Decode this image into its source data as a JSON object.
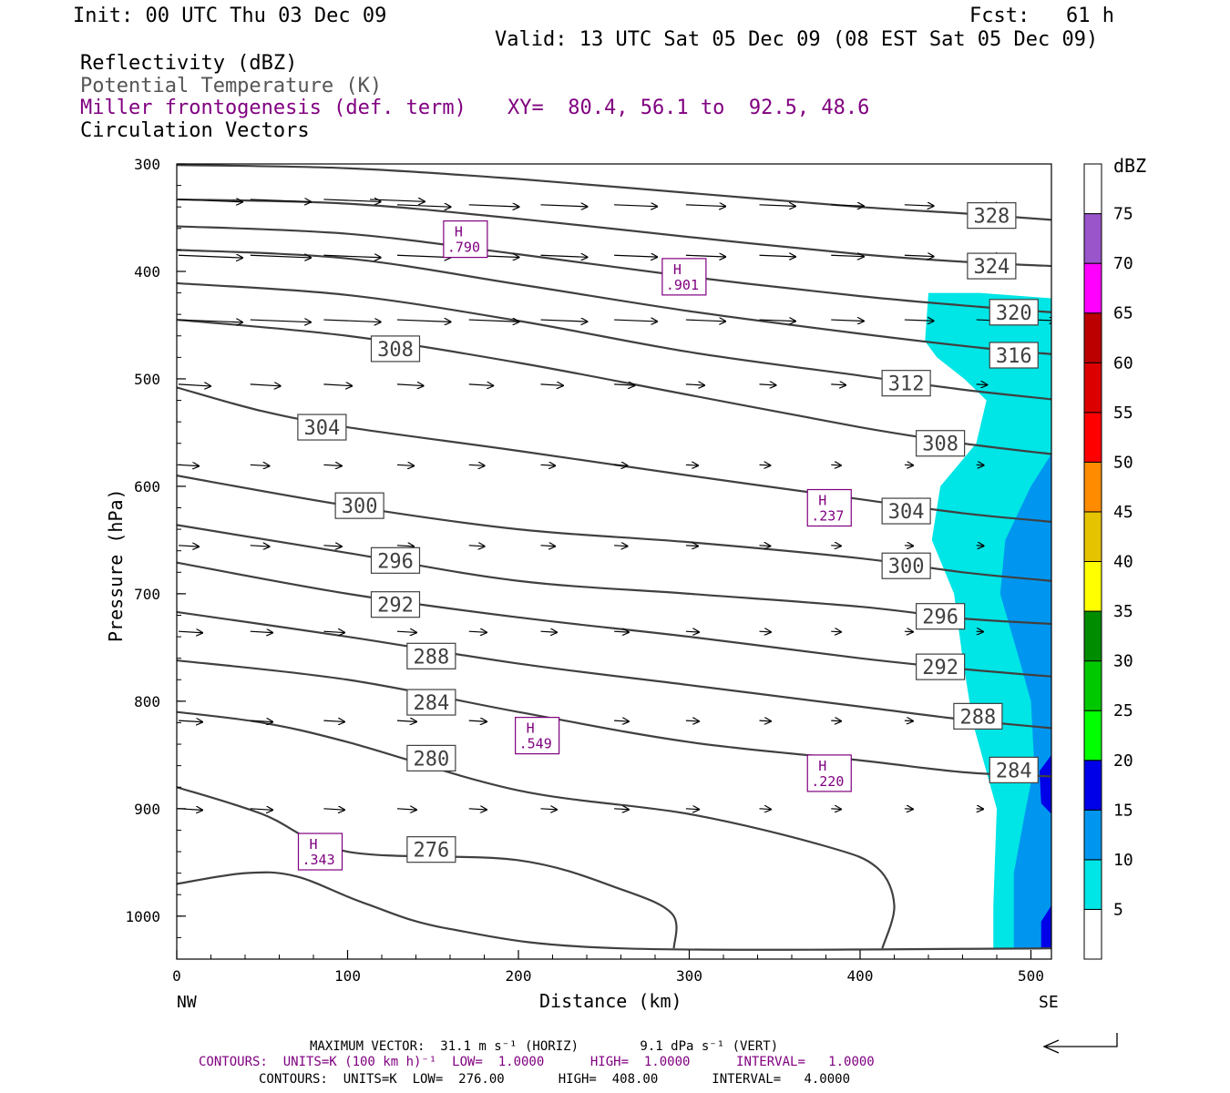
{
  "header": {
    "init": "Init: 00 UTC Thu 03 Dec 09",
    "fcst": "Fcst:   61 h",
    "valid": "Valid: 13 UTC Sat 05 Dec 09 (08 EST Sat 05 Dec 09)",
    "field1": "Reflectivity (dBZ)",
    "field2": "Potential Temperature (K)",
    "field3": "Miller frontogenesis (def. term)",
    "xy": "XY=  80.4, 56.1 to  92.5, 48.6",
    "field4": "Circulation Vectors"
  },
  "footer": {
    "max_vector": "MAXIMUM VECTOR:  31.1 m s⁻¹ (HORIZ)        9.1 dPa s⁻¹ (VERT)",
    "contours1": "CONTOURS:  UNITS=K (100 km h)⁻¹  LOW=  1.0000      HIGH=  1.0000      INTERVAL=   1.0000",
    "contours2": "CONTOURS:  UNITS=K  LOW=  276.00       HIGH=  408.00       INTERVAL=   4.0000"
  },
  "colors": {
    "theta": "#404040",
    "frontogenesis": "#800080",
    "refl_5": "#00e5e5",
    "refl_10": "#0096f0",
    "refl_15": "#0000e8"
  },
  "chart_data": {
    "type": "cross-section",
    "xlabel": "Distance (km)",
    "ylabel": "Pressure (hPa)",
    "x_ticks": [
      0,
      100,
      200,
      300,
      400,
      500
    ],
    "y_ticks": [
      300,
      400,
      500,
      600,
      700,
      800,
      900,
      1000
    ],
    "xlim": [
      0,
      512
    ],
    "ylim": [
      300,
      1040
    ],
    "x_end_labels": {
      "left": "NW",
      "right": "SE"
    },
    "colorbar": {
      "unit": "dBZ",
      "labels": [
        "5",
        "10",
        "15",
        "20",
        "25",
        "30",
        "35",
        "40",
        "45",
        "50",
        "55",
        "60",
        "65",
        "70",
        "75"
      ],
      "colors": [
        "#00e5e5",
        "#0096f0",
        "#0000e8",
        "#00ff00",
        "#00c800",
        "#008c00",
        "#ffff00",
        "#e6c300",
        "#ff8c00",
        "#ff0000",
        "#dc0000",
        "#bc0000",
        "#ff00ff",
        "#9955c9",
        "#ffffff"
      ]
    },
    "theta_contours": [
      {
        "label": "328",
        "label_at": [
          477,
          348
        ],
        "points": [
          [
            0,
            301
          ],
          [
            100,
            304
          ],
          [
            200,
            314
          ],
          [
            300,
            327
          ],
          [
            400,
            340
          ],
          [
            460,
            346
          ],
          [
            512,
            352
          ]
        ]
      },
      {
        "label": "324",
        "label_at": [
          477,
          395
        ],
        "points": [
          [
            0,
            333
          ],
          [
            100,
            337
          ],
          [
            200,
            351
          ],
          [
            300,
            368
          ],
          [
            400,
            384
          ],
          [
            460,
            391
          ],
          [
            512,
            395
          ]
        ]
      },
      {
        "label": "320",
        "label_at": [
          490,
          438
        ],
        "points": [
          [
            0,
            358
          ],
          [
            100,
            365
          ],
          [
            200,
            384
          ],
          [
            300,
            405
          ],
          [
            400,
            423
          ],
          [
            470,
            433
          ],
          [
            512,
            438
          ]
        ]
      },
      {
        "label": "316",
        "label_at": [
          490,
          478
        ],
        "points": [
          [
            0,
            380
          ],
          [
            100,
            388
          ],
          [
            200,
            412
          ],
          [
            300,
            437
          ],
          [
            400,
            458
          ],
          [
            470,
            471
          ],
          [
            512,
            477
          ]
        ]
      },
      {
        "label": "312",
        "label_at": [
          427,
          504
        ],
        "points": [
          [
            0,
            411
          ],
          [
            100,
            422
          ],
          [
            200,
            446
          ],
          [
            300,
            475
          ],
          [
            400,
            497
          ],
          [
            460,
            510
          ],
          [
            512,
            519
          ]
        ]
      },
      {
        "label": "308",
        "label_at": [
          128,
          472
        ],
        "label2": "308",
        "label2_at": [
          447,
          560
        ],
        "points": [
          [
            0,
            445
          ],
          [
            100,
            460
          ],
          [
            200,
            485
          ],
          [
            300,
            515
          ],
          [
            400,
            545
          ],
          [
            460,
            560
          ],
          [
            512,
            570
          ]
        ]
      },
      {
        "label": "304",
        "label_at": [
          85,
          545
        ],
        "label2": "304",
        "label2_at": [
          427,
          623
        ],
        "points": [
          [
            0,
            508
          ],
          [
            50,
            530
          ],
          [
            100,
            545
          ],
          [
            200,
            567
          ],
          [
            300,
            590
          ],
          [
            400,
            612
          ],
          [
            460,
            625
          ],
          [
            512,
            633
          ]
        ]
      },
      {
        "label": "300",
        "label_at": [
          107,
          618
        ],
        "label2": "300",
        "label2_at": [
          427,
          674
        ],
        "points": [
          [
            0,
            590
          ],
          [
            100,
            618
          ],
          [
            200,
            640
          ],
          [
            300,
            652
          ],
          [
            400,
            667
          ],
          [
            460,
            680
          ],
          [
            512,
            688
          ]
        ]
      },
      {
        "label": "296",
        "label_at": [
          128,
          669
        ],
        "label2": "296",
        "label2_at": [
          447,
          721
        ],
        "points": [
          [
            0,
            636
          ],
          [
            100,
            662
          ],
          [
            200,
            688
          ],
          [
            300,
            700
          ],
          [
            400,
            712
          ],
          [
            460,
            723
          ],
          [
            512,
            728
          ]
        ]
      },
      {
        "label": "292",
        "label_at": [
          128,
          710
        ],
        "label2": "292",
        "label2_at": [
          447,
          768
        ],
        "points": [
          [
            0,
            671
          ],
          [
            100,
            700
          ],
          [
            200,
            722
          ],
          [
            300,
            740
          ],
          [
            400,
            760
          ],
          [
            460,
            770
          ],
          [
            512,
            777
          ]
        ]
      },
      {
        "label": "288",
        "label_at": [
          149,
          758
        ],
        "label2": "288",
        "label2_at": [
          469,
          814
        ],
        "points": [
          [
            0,
            717
          ],
          [
            100,
            740
          ],
          [
            200,
            765
          ],
          [
            300,
            785
          ],
          [
            400,
            805
          ],
          [
            460,
            817
          ],
          [
            512,
            825
          ]
        ]
      },
      {
        "label": "284",
        "label_at": [
          149,
          801
        ],
        "label2": "284",
        "label2_at": [
          490,
          864
        ],
        "points": [
          [
            0,
            762
          ],
          [
            100,
            780
          ],
          [
            200,
            810
          ],
          [
            300,
            838
          ],
          [
            400,
            855
          ],
          [
            460,
            866
          ],
          [
            512,
            870
          ]
        ]
      },
      {
        "label": "280",
        "label_at": [
          149,
          853
        ],
        "points": [
          [
            0,
            810
          ],
          [
            50,
            820
          ],
          [
            100,
            838
          ],
          [
            200,
            883
          ],
          [
            300,
            905
          ],
          [
            380,
            935
          ],
          [
            410,
            955
          ],
          [
            420,
            990
          ],
          [
            413,
            1030
          ]
        ]
      },
      {
        "label": "276",
        "label_at": [
          149,
          938
        ],
        "points": [
          [
            0,
            880
          ],
          [
            50,
            905
          ],
          [
            100,
            940
          ],
          [
            200,
            948
          ],
          [
            260,
            975
          ],
          [
            290,
            998
          ],
          [
            291,
            1030
          ]
        ]
      },
      {
        "label": "",
        "points": [
          [
            0,
            970
          ],
          [
            40,
            960
          ],
          [
            70,
            963
          ],
          [
            110,
            988
          ],
          [
            160,
            1012
          ],
          [
            260,
            1030
          ],
          [
            512,
            1030
          ]
        ]
      }
    ],
    "frontogenesis_maxima": [
      {
        "label": "H",
        "value": ".790",
        "x": 169,
        "p": 370
      },
      {
        "label": "H",
        "value": ".901",
        "x": 297,
        "p": 405
      },
      {
        "label": "H",
        "value": ".237",
        "x": 382,
        "p": 620
      },
      {
        "label": "H",
        "value": ".549",
        "x": 211,
        "p": 832
      },
      {
        "label": "H",
        "value": ".220",
        "x": 382,
        "p": 867
      },
      {
        "label": "H",
        "value": ".343",
        "x": 84,
        "p": 940
      }
    ],
    "reflectivity_regions": [
      {
        "dbz": 5,
        "polygon": [
          [
            440,
            420
          ],
          [
            470,
            420
          ],
          [
            512,
            425
          ],
          [
            512,
            1030
          ],
          [
            478,
            1030
          ],
          [
            478,
            990
          ],
          [
            480,
            900
          ],
          [
            466,
            820
          ],
          [
            460,
            760
          ],
          [
            455,
            700
          ],
          [
            442,
            650
          ],
          [
            447,
            600
          ],
          [
            468,
            560
          ],
          [
            474,
            520
          ],
          [
            461,
            500
          ],
          [
            445,
            480
          ],
          [
            438,
            465
          ]
        ]
      },
      {
        "dbz": 10,
        "polygon": [
          [
            512,
            570
          ],
          [
            500,
            600
          ],
          [
            485,
            650
          ],
          [
            482,
            700
          ],
          [
            493,
            760
          ],
          [
            500,
            800
          ],
          [
            502,
            860
          ],
          [
            497,
            900
          ],
          [
            490,
            960
          ],
          [
            490,
            1030
          ],
          [
            512,
            1030
          ]
        ]
      },
      {
        "dbz": 15,
        "polygon": [
          [
            512,
            850
          ],
          [
            505,
            865
          ],
          [
            506,
            895
          ],
          [
            512,
            905
          ]
        ]
      },
      {
        "dbz": 15,
        "polygon": [
          [
            512,
            990
          ],
          [
            506,
            1005
          ],
          [
            506,
            1030
          ],
          [
            512,
            1030
          ]
        ]
      }
    ],
    "vector_rows": [
      {
        "p": 333,
        "x": [
          0,
          42,
          85,
          112
        ]
      },
      {
        "p": 338,
        "x": [
          128,
          170,
          212,
          255,
          297,
          340,
          382,
          425,
          467
        ]
      },
      {
        "p": 385,
        "x": [
          0,
          42,
          85,
          128,
          170,
          212,
          255,
          297,
          340,
          382,
          425,
          467
        ]
      },
      {
        "p": 445,
        "x": [
          0,
          42,
          85,
          128,
          170,
          212,
          255,
          297,
          340,
          382,
          425,
          467,
          500
        ]
      },
      {
        "p": 505,
        "x": [
          0,
          42,
          85,
          128,
          170,
          212,
          255,
          297,
          340,
          382,
          425,
          467
        ]
      },
      {
        "p": 580,
        "x": [
          0,
          42,
          85,
          128,
          170,
          212,
          255,
          297,
          340,
          382,
          425,
          467
        ]
      },
      {
        "p": 655,
        "x": [
          0,
          42,
          85,
          128,
          170,
          212,
          255,
          297,
          340,
          382,
          425,
          467
        ]
      },
      {
        "p": 735,
        "x": [
          0,
          42,
          85,
          128,
          170,
          212,
          255,
          297,
          340,
          382,
          425,
          467
        ]
      },
      {
        "p": 818,
        "x": [
          0,
          42,
          85,
          128,
          170,
          212,
          255,
          297,
          340,
          382,
          425
        ]
      },
      {
        "p": 900,
        "x": [
          0,
          42,
          85,
          128,
          170,
          212,
          255,
          297,
          340,
          382,
          425,
          467
        ]
      }
    ]
  }
}
